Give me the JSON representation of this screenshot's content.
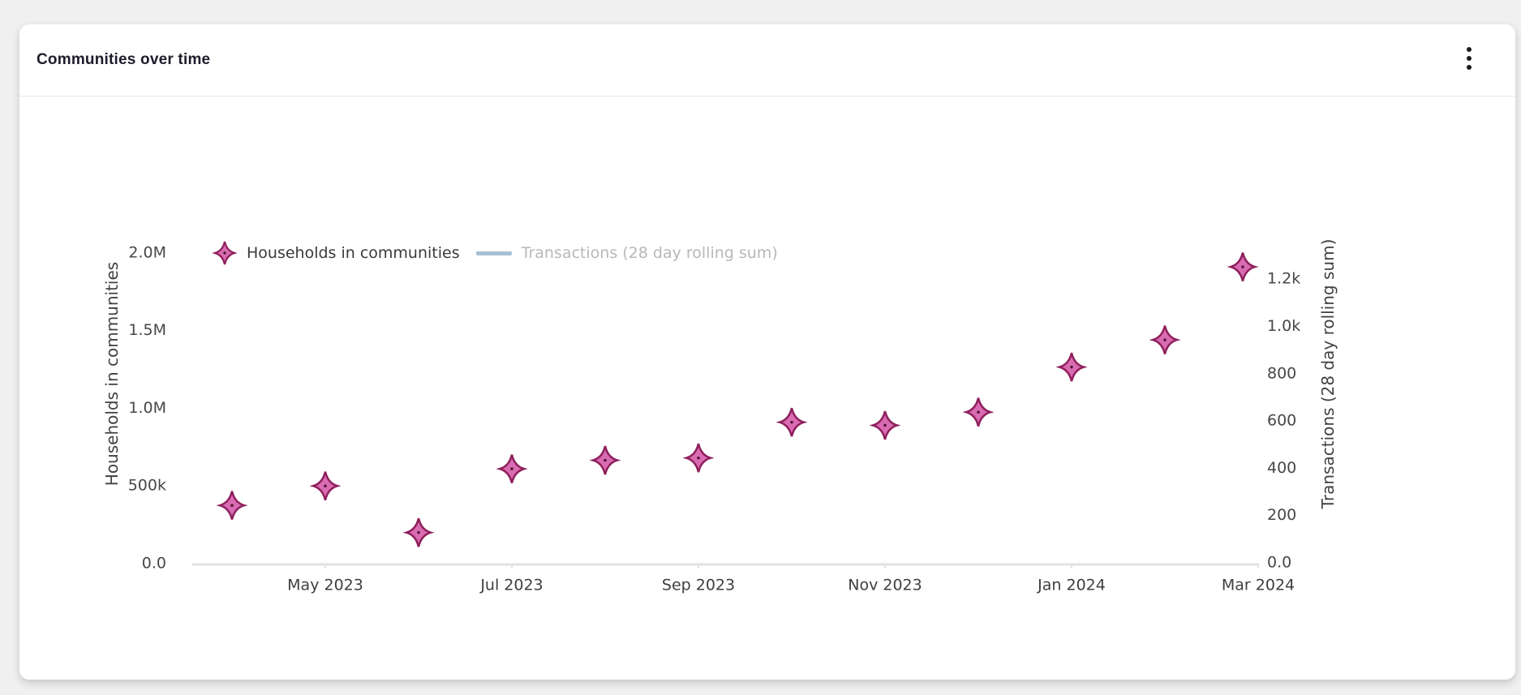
{
  "card": {
    "title": "Communities over time"
  },
  "legend": {
    "items": [
      {
        "label": "Households in communities",
        "type": "marker",
        "color": "#d86bb1",
        "border": "#8e205c",
        "muted": false
      },
      {
        "label": "Transactions (28 day rolling sum)",
        "type": "line",
        "color": "#a9c0d4",
        "muted": true
      }
    ]
  },
  "chart_data": {
    "type": "scatter",
    "title": "Communities over time",
    "x": [
      "Apr 2023",
      "May 2023",
      "Jun 2023",
      "Jul 2023",
      "Aug 2023",
      "Sep 2023",
      "Oct 2023",
      "Nov 2023",
      "Dec 2023",
      "Jan 2024",
      "Feb 2024",
      "Mar 2024"
    ],
    "series": [
      {
        "name": "Households in communities",
        "type": "scatter",
        "marker": "star-diamond",
        "color": "#d86bb1",
        "border_color": "#8e205c",
        "yaxis": "left",
        "visible": true,
        "values": [
          375000,
          500000,
          200000,
          610000,
          665000,
          680000,
          910000,
          890000,
          975000,
          1265000,
          1440000,
          1910000
        ]
      },
      {
        "name": "Transactions (28 day rolling sum)",
        "type": "line",
        "color": "#a9c0d4",
        "yaxis": "right",
        "visible": false,
        "values": []
      }
    ],
    "xaxis": {
      "tick_labels": [
        "May 2023",
        "Jul 2023",
        "Sep 2023",
        "Nov 2023",
        "Jan 2024",
        "Mar 2024"
      ]
    },
    "yaxis_left": {
      "title": "Households in communities",
      "tick_labels": [
        "0.0",
        "500k",
        "1.0M",
        "1.5M",
        "2.0M"
      ],
      "tick_values": [
        0,
        500000,
        1000000,
        1500000,
        2000000
      ],
      "range": [
        0,
        2300000
      ]
    },
    "yaxis_right": {
      "title": "Transactions (28 day rolling sum)",
      "tick_labels": [
        "0.0",
        "200",
        "400",
        "600",
        "800",
        "1.0k",
        "1.2k"
      ],
      "tick_values": [
        0,
        200,
        400,
        600,
        800,
        1000,
        1200
      ],
      "range": [
        0,
        1380
      ]
    },
    "legend_position": "top-left-inside",
    "grid": false,
    "axis_line_color": "#e2e2e2"
  }
}
